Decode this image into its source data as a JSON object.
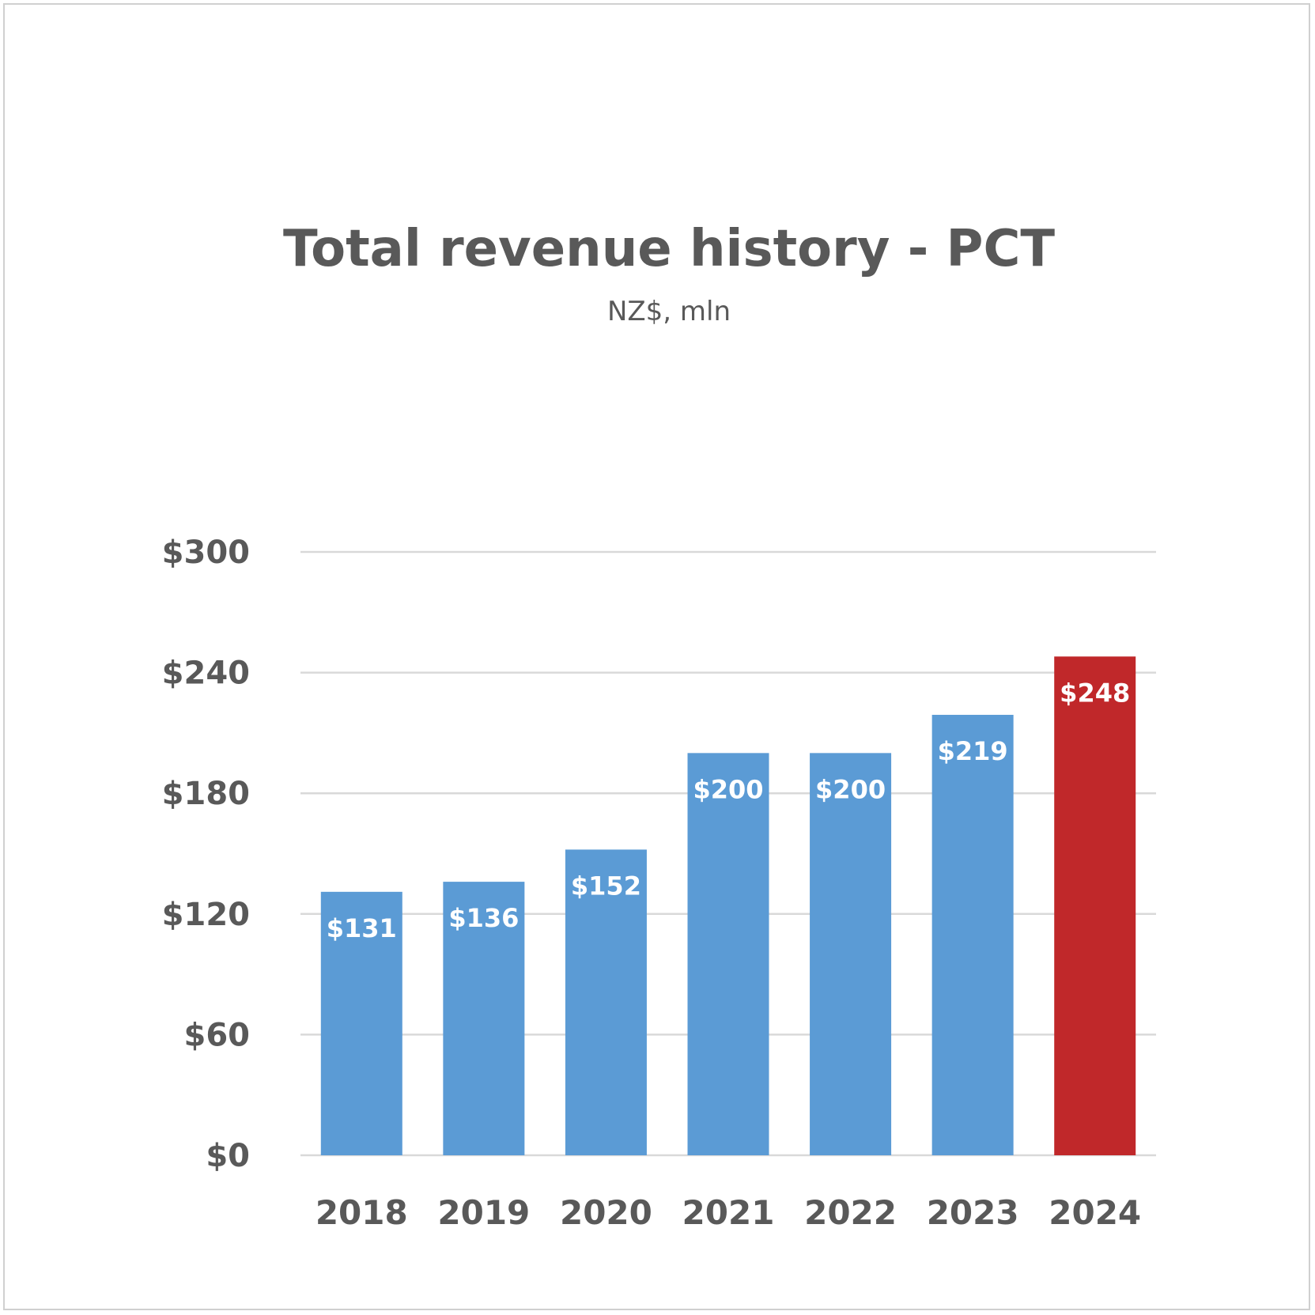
{
  "chart_data": {
    "type": "bar",
    "title": "Total revenue history - PCT",
    "subtitle": "NZ$, mln",
    "categories": [
      "2018",
      "2019",
      "2020",
      "2021",
      "2022",
      "2023",
      "2024"
    ],
    "values": [
      131,
      136,
      152,
      200,
      200,
      219,
      248
    ],
    "data_labels": [
      "$131",
      "$136",
      "$152",
      "$200",
      "$200",
      "$219",
      "$248"
    ],
    "ylim": [
      0,
      300
    ],
    "yticks": [
      0,
      60,
      120,
      180,
      240,
      300
    ],
    "ytick_labels": [
      "$0",
      "$60",
      "$120",
      "$180",
      "$240",
      "$300"
    ],
    "grid": true,
    "legend": "none",
    "colors": {
      "default_bar": "#5B9BD5",
      "highlight_bar": "#C0282A",
      "highlight_category": "2024"
    }
  }
}
